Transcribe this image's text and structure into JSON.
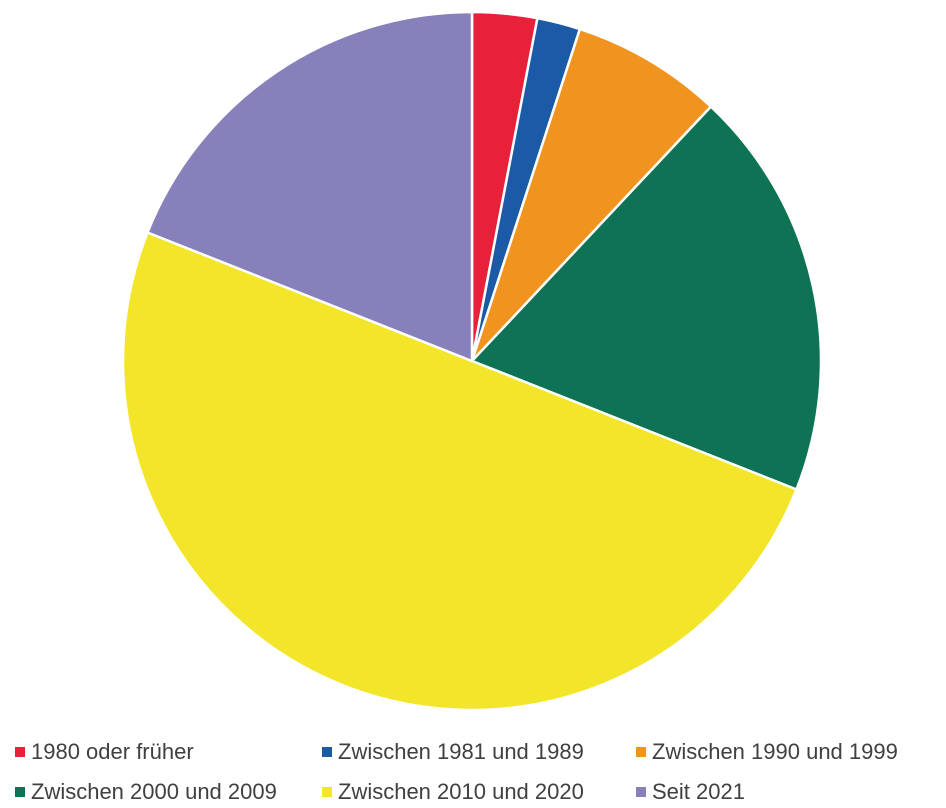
{
  "chart_data": {
    "type": "pie",
    "categories": [
      "1980 oder früher",
      "Zwischen 1981 und 1989",
      "Zwischen 1990 und 1999",
      "Zwischen 2000 und 2009",
      "Zwischen 2010 und 2020",
      "Seit 2021"
    ],
    "values": [
      3,
      2,
      7,
      19,
      50,
      19
    ],
    "colors": [
      "#e8213a",
      "#1a5aa6",
      "#f0941f",
      "#0e7355",
      "#f2e52a",
      "#8680bb"
    ],
    "legend": "bottom"
  }
}
